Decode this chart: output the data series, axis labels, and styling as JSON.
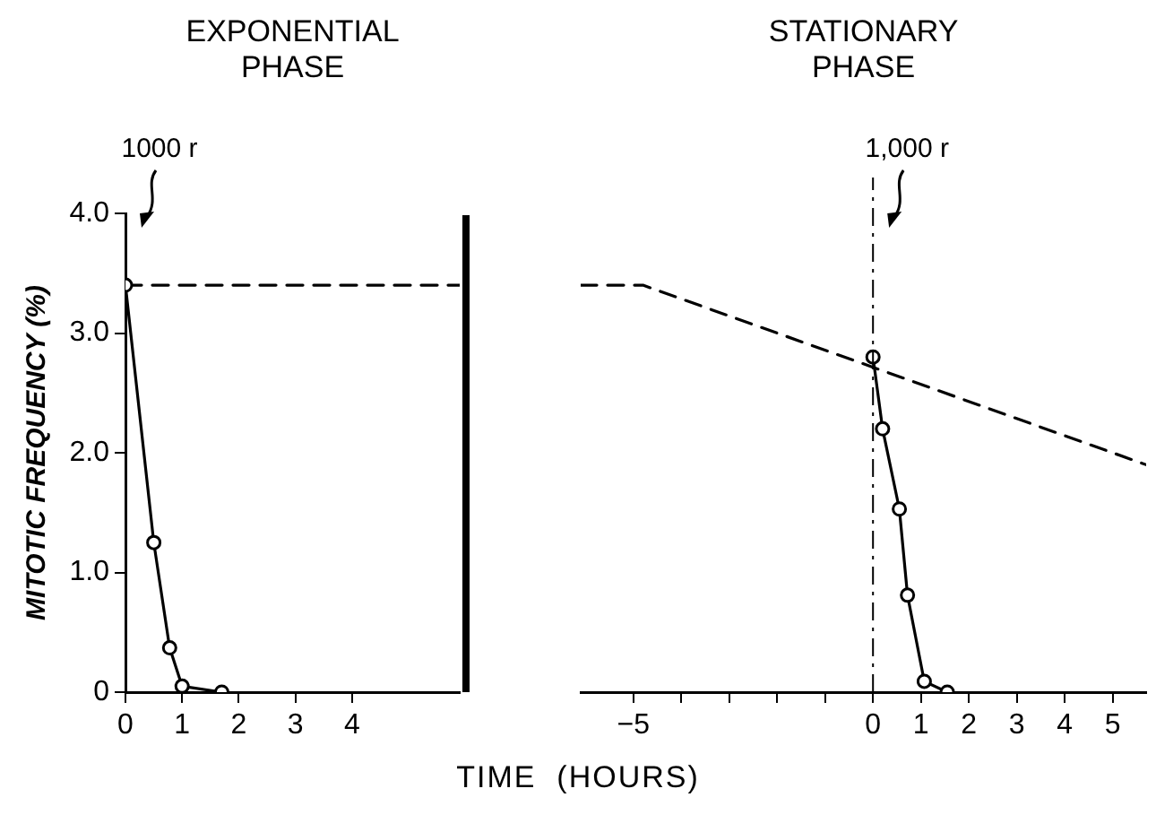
{
  "chart_data": [
    {
      "type": "line",
      "title": "EXPONENTIAL PHASE",
      "ylabel": "MITOTIC FREQUENCY (%)",
      "xlabel": "TIME (HOURS)",
      "xlim": [
        0,
        5.9
      ],
      "xticks": [
        0,
        1,
        2,
        3,
        4
      ],
      "ylim": [
        0,
        4
      ],
      "yticks": [
        0,
        {
          "value": 1,
          "label": "1.0"
        },
        {
          "value": 2,
          "label": "2.0"
        },
        {
          "value": 3,
          "label": "3.0"
        },
        {
          "value": 4,
          "label": "4.0"
        }
      ],
      "grid": false,
      "legend": false,
      "annotations": [
        "1000 r"
      ],
      "series": [
        {
          "color": "#000000",
          "marker": "circle",
          "line_style": "solid",
          "x": [
            0,
            0.5,
            0.78,
            1.0,
            1.7
          ],
          "values": [
            3.4,
            1.25,
            0.37,
            0.05,
            0
          ]
        },
        {
          "color": "#000000",
          "marker": "none",
          "line_style": "dashed",
          "x": [
            0,
            5.9
          ],
          "values": [
            3.4,
            3.4
          ]
        }
      ]
    },
    {
      "type": "line",
      "title": "STATIONARY PHASE",
      "xlim": [
        -6.1,
        5.7
      ],
      "xticks": [
        {
          "value": -5,
          "label": "−5"
        },
        {
          "value": -4,
          "label": null
        },
        {
          "value": -3,
          "label": null
        },
        {
          "value": -2,
          "label": null
        },
        {
          "value": -1,
          "label": null
        },
        0,
        1,
        2,
        3,
        4,
        5
      ],
      "ylim": [
        0,
        4
      ],
      "tick_labels": "x",
      "grid": false,
      "legend": false,
      "ref_lines": [
        {
          "axis": "x",
          "value": 0,
          "line_style": "dashed",
          "color": "#000000"
        }
      ],
      "annotations": [
        "1,000 r"
      ],
      "series": [
        {
          "color": "#000000",
          "marker": "circle",
          "line_style": "solid",
          "x": [
            0,
            0.2,
            0.55,
            0.72,
            1.07,
            1.55
          ],
          "values": [
            2.8,
            2.2,
            1.53,
            0.81,
            0.09,
            0
          ]
        },
        {
          "color": "#000000",
          "marker": "none",
          "line_style": "dashed",
          "x": [
            -6.1,
            -4.8,
            5.7
          ],
          "values": [
            3.4,
            3.4,
            1.9
          ]
        }
      ]
    }
  ]
}
